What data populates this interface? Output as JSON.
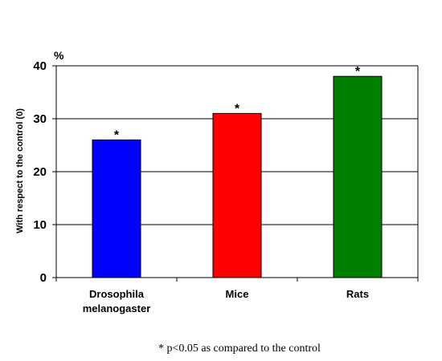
{
  "chart_data": {
    "type": "bar",
    "categories": [
      [
        "Drosophila",
        "melanogaster"
      ],
      [
        "Mice"
      ],
      [
        "Rats"
      ]
    ],
    "values": [
      26,
      31,
      38
    ],
    "colors": [
      "#0000ff",
      "#ff0000",
      "#008000"
    ],
    "significance_markers": [
      "*",
      "*",
      "*"
    ],
    "ylabel": "With respect to the control (0)",
    "unit": "%",
    "ylim": [
      0,
      40
    ],
    "yticks": [
      0,
      10,
      20,
      30,
      40
    ],
    "grid": true,
    "footnote": "*  p<0.05 as compared to the control"
  }
}
